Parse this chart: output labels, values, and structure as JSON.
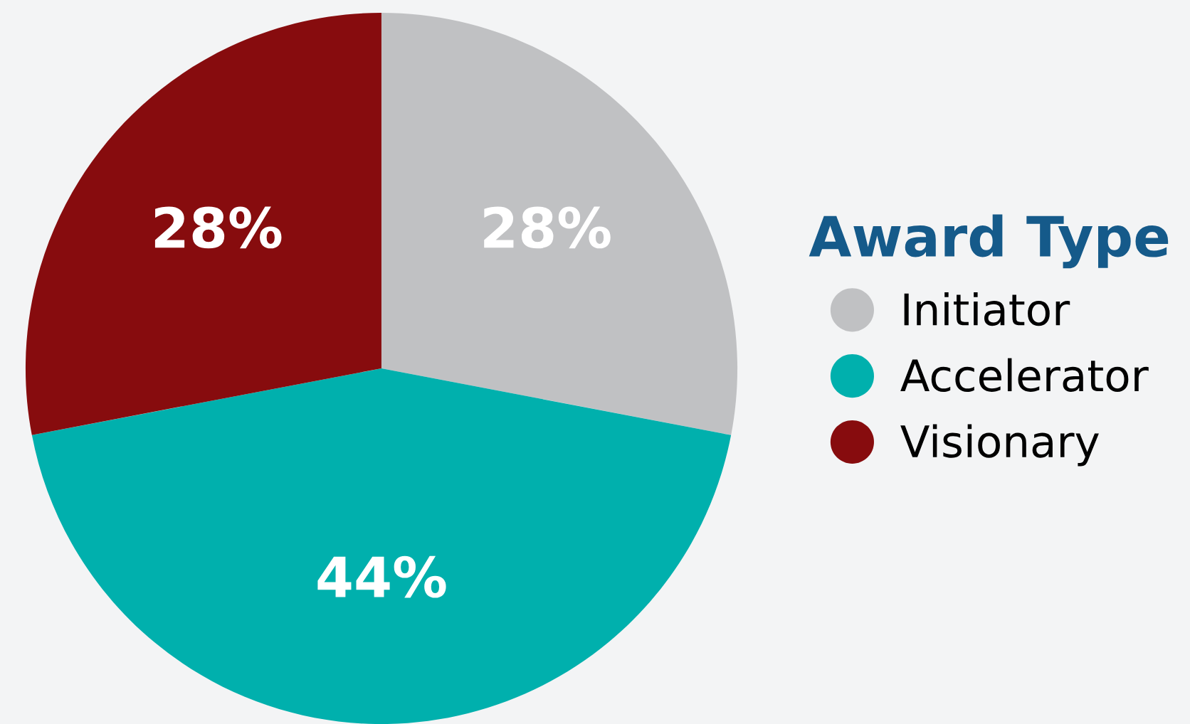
{
  "chart_data": {
    "type": "pie",
    "categories": [
      "Initiator",
      "Accelerator",
      "Visionary"
    ],
    "values": [
      28,
      44,
      28
    ],
    "value_labels": [
      "28%",
      "44%",
      "28%"
    ],
    "colors": [
      "#c0c1c3",
      "#00b0ad",
      "#870c0e"
    ],
    "legend_title": "Award Type",
    "legend": "right"
  }
}
